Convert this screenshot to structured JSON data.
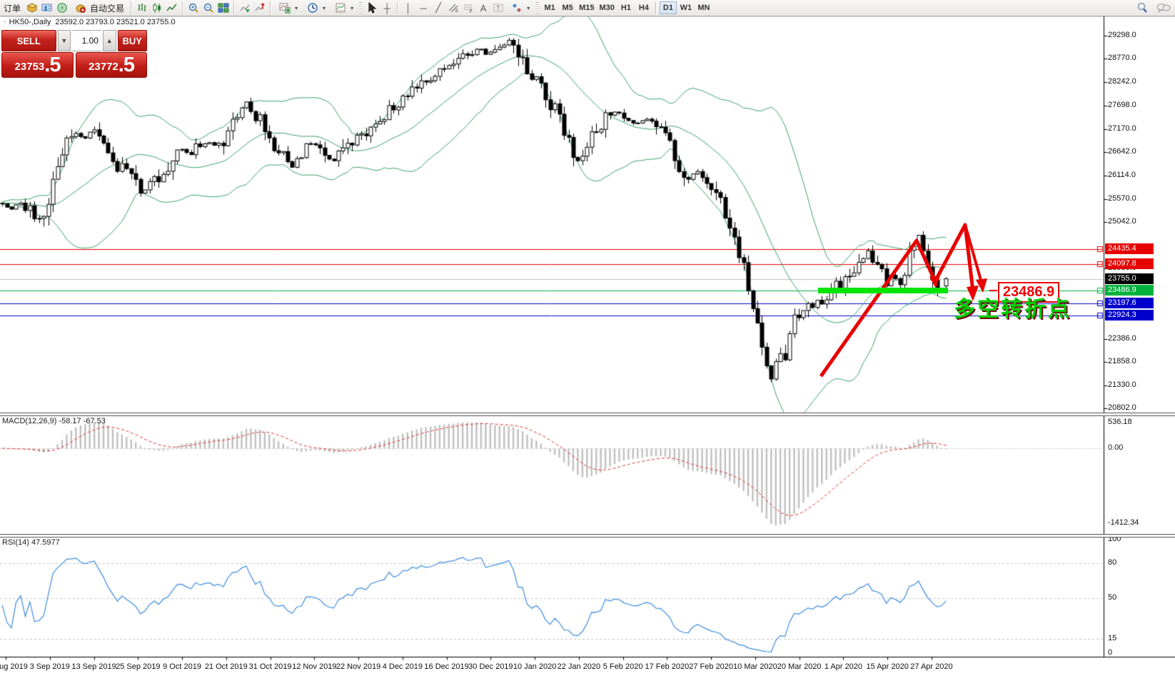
{
  "toolbar": {
    "order_label": "订单",
    "autotrade_label": "自动交易",
    "timeframes": [
      "M1",
      "M5",
      "M15",
      "M30",
      "H1",
      "H4",
      "D1",
      "W1",
      "MN"
    ],
    "active_timeframe": "D1"
  },
  "icons": {
    "crosshair": "┼",
    "vertical-line": "│",
    "horizontal-line": "─",
    "trendline": "╱",
    "text": "A",
    "text-label": "T",
    "spinner-down": "▼",
    "spinner-up": "▲",
    "dropdown-caret": "▾",
    "bullet": "·"
  },
  "chart_header": {
    "symbol": "HK50-,Daily",
    "ohlc": "23592.0 23793.0 23521.0 23755.0"
  },
  "trade_panel": {
    "sell_label": "SELL",
    "buy_label": "BUY",
    "volume": "1.00",
    "sell_price": "23753",
    "sell_pips": ".5",
    "buy_price": "23772",
    "buy_pips": ".5"
  },
  "annotations": {
    "support_price_label": "23486.9",
    "turning_point_text": "多空转折点"
  },
  "macd_panel": {
    "label": "MACD(12,26,9) -58.17 -67.53",
    "max_label": "536.18",
    "zero_label": "0.00",
    "min_label": "-1412.34"
  },
  "rsi_panel": {
    "label": "RSI(14) 47.5977",
    "level_labels": [
      "100",
      "80",
      "50",
      "15",
      "0"
    ]
  },
  "time_axis": {
    "dates": [
      "22 Aug 2019",
      "3 Sep 2019",
      "13 Sep 2019",
      "25 Sep 2019",
      "9 Oct 2019",
      "21 Oct 2019",
      "31 Oct 2019",
      "12 Nov 2019",
      "22 Nov 2019",
      "4 Dec 2019",
      "16 Dec 2019",
      "30 Dec 2019",
      "10 Jan 2020",
      "22 Jan 2020",
      "5 Feb 2020",
      "17 Feb 2020",
      "27 Feb 2020",
      "10 Mar 2020",
      "20 Mar 2020",
      "1 Apr 2020",
      "15 Apr 2020",
      "27 Apr 2020"
    ]
  },
  "colors": {
    "bull_candle": "#ffffff",
    "bear_candle": "#000000",
    "bollinger_band": "#3da36b",
    "level_red": "#e60000",
    "level_blue": "#0000cc",
    "level_green": "#00b23c",
    "bid_line_grey": "#c0c0c0",
    "macd_histogram": "#c0c0c0",
    "macd_signal": "#e03030",
    "rsi_line": "#3c8ce0",
    "annotation_red": "#e80000",
    "highlight_green": "#00e400",
    "trade_red": "#c2221b"
  },
  "chart_data": {
    "type": "candlestick",
    "symbol": "HK50",
    "period": "Daily",
    "last_ohlc": {
      "open": 23592.0,
      "high": 23793.0,
      "low": 23521.0,
      "close": 23755.0
    },
    "y_ticks": [
      29298.0,
      28770.0,
      28242.0,
      27698.0,
      27170.0,
      26642.0,
      26114.0,
      25570.0,
      25042.0,
      23986.0,
      22386.0,
      21858.0,
      21330.0,
      20802.0
    ],
    "price_levels": [
      {
        "price": 24435.4,
        "label": "24435.4",
        "color": "#e60000",
        "badge_bg": "#e60000"
      },
      {
        "price": 24097.8,
        "label": "24097.8",
        "color": "#e60000",
        "badge_bg": "#e60000"
      },
      {
        "price": 23755.0,
        "label": "23755.0",
        "color": "#c0c0c0",
        "badge_bg": "#000000"
      },
      {
        "price": 23486.9,
        "label": "23486.9",
        "color": "#00b23c",
        "badge_bg": "#00b23c"
      },
      {
        "price": 23197.6,
        "label": "23197.6",
        "color": "#0000cc",
        "badge_bg": "#0000cc"
      },
      {
        "price": 22924.3,
        "label": "22924.3",
        "color": "#0000cc",
        "badge_bg": "#0000cc"
      }
    ],
    "macd_axis": {
      "max": 536.18,
      "zero": 0.0,
      "min": -1412.34
    },
    "rsi_levels": [
      80,
      50,
      15
    ],
    "indicators": {
      "bollinger_bands": {
        "period": 20,
        "deviation": 2
      },
      "macd": {
        "fast": 12,
        "slow": 26,
        "signal": 9,
        "main_value": -58.17,
        "signal_value": -67.53
      },
      "rsi": {
        "period": 14,
        "value": 47.5977
      }
    },
    "price_path_anchors": [
      [
        -300,
        25450
      ],
      [
        0,
        25500
      ],
      [
        15,
        25350
      ],
      [
        30,
        25520
      ],
      [
        45,
        25200
      ],
      [
        58,
        25050
      ],
      [
        68,
        25500
      ],
      [
        80,
        26300
      ],
      [
        92,
        26850
      ],
      [
        105,
        27100
      ],
      [
        118,
        26950
      ],
      [
        132,
        27180
      ],
      [
        145,
        26800
      ],
      [
        158,
        26420
      ],
      [
        172,
        26280
      ],
      [
        185,
        26100
      ],
      [
        198,
        25680
      ],
      [
        210,
        25850
      ],
      [
        222,
        26120
      ],
      [
        235,
        26300
      ],
      [
        250,
        26650
      ],
      [
        262,
        26580
      ],
      [
        275,
        26780
      ],
      [
        290,
        26880
      ],
      [
        305,
        26800
      ],
      [
        318,
        27000
      ],
      [
        332,
        27550
      ],
      [
        345,
        27780
      ],
      [
        358,
        27500
      ],
      [
        372,
        27150
      ],
      [
        385,
        26800
      ],
      [
        398,
        26500
      ],
      [
        410,
        26280
      ],
      [
        424,
        26600
      ],
      [
        438,
        26850
      ],
      [
        452,
        26680
      ],
      [
        465,
        26420
      ],
      [
        478,
        26650
      ],
      [
        492,
        26880
      ],
      [
        506,
        27000
      ],
      [
        520,
        27180
      ],
      [
        535,
        27400
      ],
      [
        550,
        27700
      ],
      [
        565,
        27850
      ],
      [
        580,
        28100
      ],
      [
        595,
        28250
      ],
      [
        610,
        28400
      ],
      [
        625,
        28550
      ],
      [
        640,
        28700
      ],
      [
        655,
        28850
      ],
      [
        670,
        29050
      ],
      [
        682,
        28870
      ],
      [
        695,
        28980
      ],
      [
        708,
        29150
      ],
      [
        718,
        29080
      ],
      [
        730,
        28750
      ],
      [
        742,
        28400
      ],
      [
        755,
        28150
      ],
      [
        768,
        27850
      ],
      [
        780,
        27500
      ],
      [
        792,
        27050
      ],
      [
        806,
        26350
      ],
      [
        818,
        26600
      ],
      [
        832,
        27050
      ],
      [
        846,
        27380
      ],
      [
        860,
        27550
      ],
      [
        875,
        27480
      ],
      [
        890,
        27280
      ],
      [
        905,
        27380
      ],
      [
        920,
        27250
      ],
      [
        935,
        26950
      ],
      [
        950,
        26400
      ],
      [
        962,
        26050
      ],
      [
        975,
        26200
      ],
      [
        988,
        25950
      ],
      [
        1000,
        25750
      ],
      [
        1012,
        25400
      ],
      [
        1025,
        24850
      ],
      [
        1038,
        24200
      ],
      [
        1050,
        23400
      ],
      [
        1062,
        22600
      ],
      [
        1072,
        21900
      ],
      [
        1082,
        21350
      ],
      [
        1090,
        22300
      ],
      [
        1097,
        21650
      ],
      [
        1105,
        22450
      ],
      [
        1113,
        22950
      ],
      [
        1121,
        22750
      ],
      [
        1129,
        23250
      ],
      [
        1137,
        23050
      ],
      [
        1145,
        23300
      ],
      [
        1153,
        23050
      ],
      [
        1161,
        23400
      ],
      [
        1170,
        23600
      ],
      [
        1178,
        23450
      ],
      [
        1186,
        23800
      ],
      [
        1194,
        24000
      ],
      [
        1202,
        24150
      ],
      [
        1210,
        24300
      ],
      [
        1218,
        24380
      ],
      [
        1226,
        24150
      ],
      [
        1234,
        23850
      ],
      [
        1242,
        23700
      ],
      [
        1250,
        23880
      ],
      [
        1258,
        23680
      ],
      [
        1266,
        23950
      ],
      [
        1274,
        24250
      ],
      [
        1282,
        24600
      ],
      [
        1289,
        24700
      ],
      [
        1296,
        24250
      ],
      [
        1303,
        23850
      ],
      [
        1310,
        23550
      ],
      [
        1317,
        23480
      ],
      [
        1325,
        23755
      ]
    ]
  }
}
